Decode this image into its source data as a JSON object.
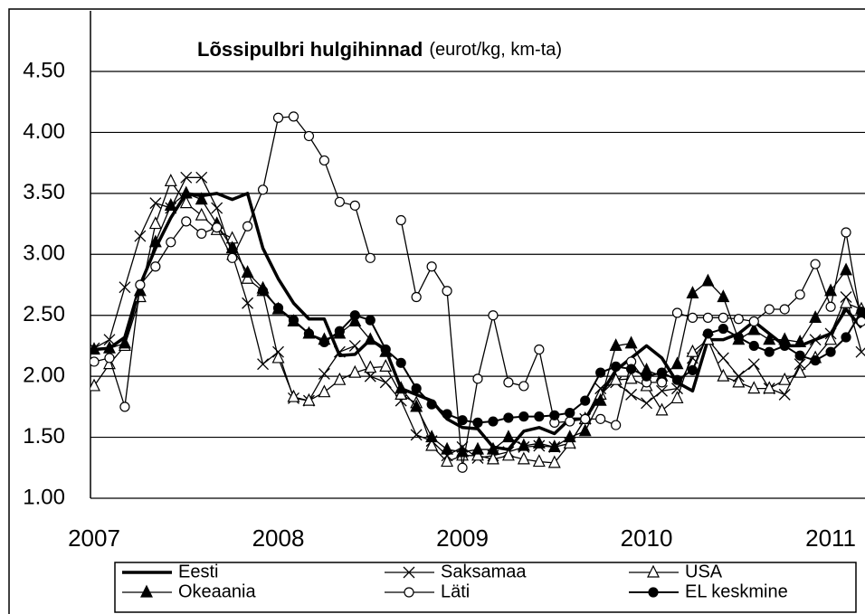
{
  "chart_data": {
    "type": "line",
    "title": "Lõssipulbri hulgihinnad",
    "subtitle": "(eurot/kg, km-ta)",
    "categories": [
      "2007",
      null,
      null,
      null,
      null,
      null,
      null,
      null,
      null,
      null,
      null,
      null,
      "2008",
      null,
      null,
      null,
      null,
      null,
      null,
      null,
      null,
      null,
      null,
      null,
      "2009",
      null,
      null,
      null,
      null,
      null,
      null,
      null,
      null,
      null,
      null,
      null,
      "2010",
      null,
      null,
      null,
      null,
      null,
      null,
      null,
      null,
      null,
      null,
      null,
      "2011",
      null,
      null
    ],
    "ylim": [
      1.0,
      4.5
    ],
    "yticks": [
      {
        "value": 1.0,
        "label": "1.00"
      },
      {
        "value": 1.5,
        "label": "1.50"
      },
      {
        "value": 2.0,
        "label": "2.00"
      },
      {
        "value": 2.5,
        "label": "2.50"
      },
      {
        "value": 3.0,
        "label": "3.00"
      },
      {
        "value": 3.5,
        "label": "3.50"
      },
      {
        "value": 4.0,
        "label": "4.00"
      },
      {
        "value": 4.5,
        "label": "4.50"
      }
    ],
    "grid": true,
    "legend": "bottom",
    "series": [
      {
        "name": "Eesti",
        "color": "#000000",
        "marker": "none",
        "line_width": 3.5,
        "values": [
          2.22,
          2.23,
          2.32,
          2.75,
          3.05,
          3.3,
          3.5,
          3.48,
          3.5,
          3.45,
          3.5,
          3.05,
          2.8,
          2.6,
          2.47,
          2.47,
          2.17,
          2.18,
          2.3,
          2.22,
          1.9,
          1.85,
          1.8,
          1.65,
          1.58,
          1.57,
          1.42,
          1.4,
          1.55,
          1.58,
          1.53,
          1.65,
          1.65,
          1.85,
          2.05,
          2.15,
          2.25,
          2.15,
          1.95,
          1.88,
          2.3,
          2.3,
          2.35,
          2.45,
          2.35,
          2.25,
          2.25,
          2.3,
          2.35,
          2.55,
          2.4
        ]
      },
      {
        "name": "Saksamaa",
        "color": "#000000",
        "marker": "x",
        "line_width": 1.3,
        "values": [
          2.23,
          2.3,
          2.73,
          3.15,
          3.42,
          3.38,
          3.63,
          3.63,
          3.38,
          3.0,
          2.6,
          2.1,
          2.2,
          1.82,
          1.8,
          2.02,
          2.2,
          2.25,
          2.0,
          1.95,
          1.8,
          1.52,
          1.47,
          1.35,
          1.42,
          1.33,
          1.35,
          1.38,
          1.42,
          1.43,
          1.42,
          1.45,
          1.65,
          1.9,
          1.95,
          1.85,
          1.78,
          1.88,
          1.9,
          2.15,
          2.3,
          2.15,
          2.0,
          2.1,
          1.9,
          1.85,
          2.1,
          2.3,
          2.35,
          2.65,
          2.2
        ]
      },
      {
        "name": "USA",
        "color": "#000000",
        "marker": "triangle-open",
        "line_width": 1.3,
        "values": [
          1.92,
          2.1,
          2.25,
          2.65,
          3.25,
          3.6,
          3.42,
          3.32,
          3.2,
          3.13,
          2.8,
          2.7,
          2.15,
          1.83,
          1.8,
          1.87,
          1.97,
          2.03,
          2.07,
          2.08,
          1.85,
          1.78,
          1.43,
          1.3,
          1.35,
          1.35,
          1.32,
          1.35,
          1.32,
          1.3,
          1.29,
          1.45,
          1.65,
          1.85,
          1.97,
          1.98,
          1.92,
          1.72,
          1.82,
          2.2,
          2.3,
          2.0,
          1.95,
          1.9,
          1.9,
          1.97,
          2.03,
          2.15,
          2.3,
          2.6,
          2.55
        ]
      },
      {
        "name": "Okeaania",
        "color": "#000000",
        "marker": "triangle-filled",
        "line_width": 1.3,
        "values": [
          2.22,
          2.23,
          2.27,
          2.7,
          3.1,
          3.4,
          3.5,
          3.45,
          3.25,
          3.05,
          2.85,
          2.72,
          2.55,
          2.45,
          2.35,
          2.3,
          2.35,
          2.45,
          2.3,
          2.2,
          1.9,
          1.75,
          1.5,
          1.4,
          1.38,
          1.4,
          1.4,
          1.5,
          1.43,
          1.45,
          1.42,
          1.5,
          1.55,
          1.8,
          2.25,
          2.27,
          2.05,
          2.0,
          2.1,
          2.68,
          2.78,
          2.65,
          2.3,
          2.38,
          2.3,
          2.3,
          2.28,
          2.48,
          2.7,
          2.87,
          2.5
        ]
      },
      {
        "name": "Läti",
        "color": "#000000",
        "marker": "circle-open",
        "line_width": 1.3,
        "values": [
          2.12,
          2.15,
          1.75,
          2.75,
          2.9,
          3.1,
          3.27,
          3.17,
          3.22,
          2.97,
          3.23,
          3.53,
          4.12,
          4.13,
          3.97,
          3.77,
          3.43,
          3.4,
          2.97,
          null,
          3.28,
          2.65,
          2.9,
          2.7,
          1.25,
          1.98,
          2.5,
          1.95,
          1.92,
          2.22,
          1.62,
          1.63,
          1.65,
          1.65,
          1.6,
          2.12,
          1.95,
          1.95,
          2.52,
          2.48,
          2.48,
          2.48,
          2.47,
          2.45,
          2.55,
          2.55,
          2.67,
          2.92,
          2.57,
          3.18,
          2.45
        ]
      },
      {
        "name": "EL keskmine",
        "color": "#000000",
        "marker": "circle-filled",
        "line_width": 2,
        "values": [
          null,
          null,
          null,
          null,
          null,
          null,
          null,
          null,
          null,
          null,
          null,
          2.7,
          2.56,
          2.46,
          2.35,
          2.28,
          2.37,
          2.5,
          2.46,
          2.22,
          2.11,
          1.9,
          1.77,
          1.69,
          1.64,
          1.62,
          1.63,
          1.66,
          1.67,
          1.67,
          1.68,
          1.7,
          1.8,
          2.03,
          2.08,
          2.06,
          2.0,
          2.03,
          1.97,
          2.05,
          2.35,
          2.39,
          2.32,
          2.25,
          2.2,
          2.25,
          2.17,
          2.13,
          2.2,
          2.32,
          2.53
        ]
      }
    ]
  }
}
